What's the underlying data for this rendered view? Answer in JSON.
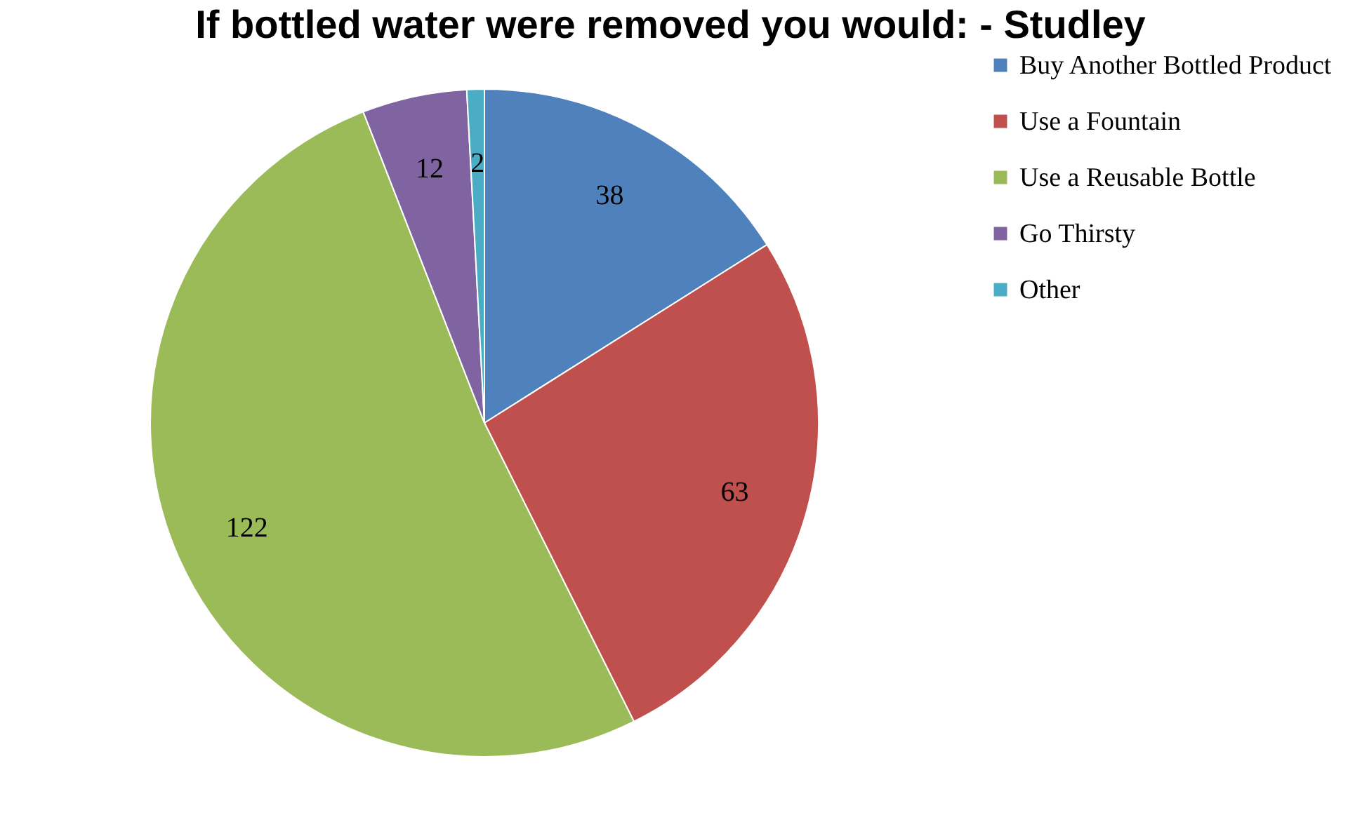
{
  "chart_data": {
    "type": "pie",
    "title": "If bottled water were removed you would: - Studley",
    "categories": [
      "Buy Another Bottled Product",
      "Use a Fountain",
      "Use a Reusable Bottle",
      "Go Thirsty",
      "Other"
    ],
    "values": [
      38,
      63,
      122,
      12,
      2
    ],
    "colors": [
      "#4f81bd",
      "#c0504d",
      "#9bbb59",
      "#8064a2",
      "#4bacc6"
    ],
    "data_labels": true,
    "legend": "right"
  }
}
